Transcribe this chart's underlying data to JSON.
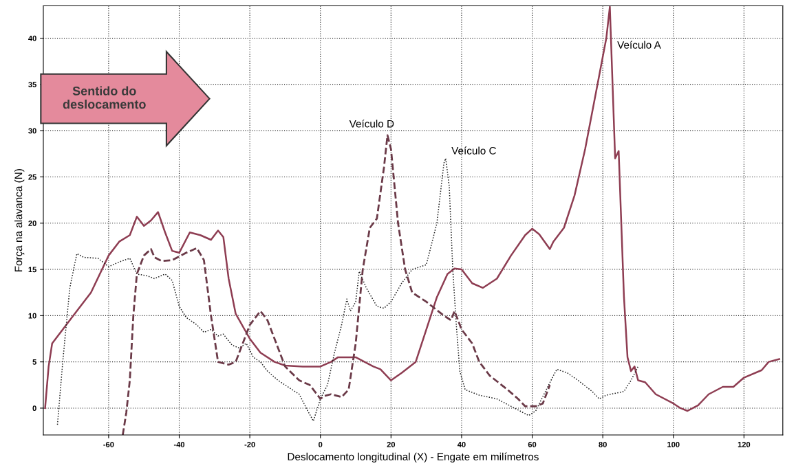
{
  "chart_data": {
    "type": "line",
    "xlabel": "Deslocamento longitudinal (X) - Engate em milímetros",
    "ylabel": "Força na alavanca (N)",
    "xlim": [
      -78.5,
      131
    ],
    "ylim": [
      -2.9,
      43.5
    ],
    "xticks": [
      -60,
      -40,
      -20,
      0,
      20,
      40,
      60,
      80,
      100,
      120
    ],
    "yticks": [
      0,
      5,
      10,
      15,
      20,
      25,
      30,
      35,
      40
    ],
    "grid": true,
    "legend": false,
    "series": [
      {
        "color": "#8e3d52",
        "line_style": "solid",
        "x": [
          -78,
          -77,
          -76,
          -73,
          -70,
          -65,
          -60,
          -57,
          -54,
          -52,
          -50,
          -48,
          -46,
          -44,
          -42,
          -40,
          -37,
          -34,
          -31,
          -29,
          -27.5,
          -26,
          -24,
          -20,
          -17,
          -13,
          -10,
          -5,
          0,
          3,
          5,
          10,
          15,
          17,
          20,
          23,
          27,
          30,
          33,
          36,
          38,
          40,
          43,
          46,
          50,
          54,
          58,
          60,
          62,
          65,
          66,
          69,
          72,
          75,
          79,
          81,
          82,
          83.5,
          84.5,
          86,
          87,
          88,
          89,
          90,
          92,
          95,
          100,
          102,
          104,
          107,
          110,
          114,
          117,
          120,
          125,
          127,
          130
        ],
        "values": [
          0,
          4.5,
          7,
          8.5,
          10,
          12.5,
          16.5,
          18,
          18.7,
          20.7,
          19.7,
          20.3,
          21.2,
          19,
          17,
          16.8,
          19,
          18.7,
          18.2,
          19.2,
          18.5,
          14,
          10.2,
          7.5,
          6,
          5,
          4.6,
          4.5,
          4.5,
          5,
          5.5,
          5.5,
          4.5,
          4.2,
          3,
          3.8,
          5,
          8.5,
          12,
          14.5,
          15.1,
          15,
          13.5,
          13,
          14,
          16.5,
          18.7,
          19.4,
          18.8,
          17.2,
          18,
          19.5,
          23,
          28,
          36,
          40,
          43.4,
          27,
          27.8,
          12,
          5.5,
          4,
          4.5,
          3,
          2.8,
          1.5,
          0.5,
          0,
          -0.3,
          0.3,
          1.5,
          2.3,
          2.3,
          3.3,
          4.1,
          5,
          5.3
        ]
      },
      {
        "color": "#1a1a1a",
        "line_style": "dotted",
        "x": [
          -74.5,
          -73,
          -71,
          -69,
          -67,
          -63,
          -60,
          -57,
          -54,
          -52,
          -49,
          -47,
          -44,
          -42,
          -40,
          -38,
          -35,
          -33,
          -31,
          -29,
          -27.5,
          -25,
          -23,
          -21,
          -19,
          -17,
          -15,
          -12,
          -10,
          -6,
          -4,
          -2,
          0,
          2,
          4,
          6,
          7.5,
          8.5,
          10,
          11,
          13,
          16,
          18,
          20,
          23,
          26,
          30,
          33,
          35,
          35.5,
          36.5,
          37.5,
          38.5,
          39.5,
          41,
          45,
          50,
          55,
          59,
          61,
          64,
          66,
          67,
          70,
          73,
          77,
          79,
          81,
          86,
          88,
          90
        ],
        "values": [
          -1.8,
          5,
          13,
          16.7,
          16.3,
          16.2,
          15.3,
          15.8,
          16.2,
          14.5,
          14.3,
          14,
          14.5,
          13.8,
          11,
          9.8,
          9,
          8.2,
          8.5,
          7.8,
          8,
          6.8,
          6.5,
          7,
          5.5,
          5,
          4,
          3,
          2.5,
          1.5,
          0,
          -1.4,
          1,
          2.5,
          6,
          9,
          11.8,
          10.5,
          11.5,
          14.8,
          13,
          11,
          10.8,
          11.5,
          13.5,
          15,
          15.5,
          20,
          26.5,
          27,
          24,
          15,
          9,
          4,
          2,
          1.4,
          1,
          0,
          -0.8,
          -0.3,
          2,
          3.5,
          4.2,
          3.8,
          3,
          1.8,
          1,
          1.4,
          1.8,
          3,
          4.5
        ]
      },
      {
        "color": "#6b3a48",
        "line_style": "dashed",
        "x": [
          -56,
          -55,
          -54,
          -53,
          -52,
          -50,
          -48,
          -47,
          -45,
          -42,
          -38,
          -35,
          -33,
          -31,
          -29,
          -26,
          -24,
          -22,
          -20,
          -17,
          -15,
          -12,
          -10,
          -6,
          -3,
          0,
          1,
          3,
          6,
          8,
          10,
          12,
          14,
          16,
          18,
          19,
          20,
          22,
          24,
          26,
          30,
          35,
          37,
          38,
          40,
          43,
          45,
          48,
          53,
          56,
          58,
          61,
          63,
          65
        ],
        "values": [
          -2.9,
          -0.5,
          3,
          10,
          14.5,
          16.5,
          17.2,
          16.3,
          15.9,
          16,
          16.8,
          17.3,
          16,
          10,
          5,
          4.7,
          5,
          7,
          9,
          10.5,
          9.5,
          6.5,
          4.5,
          3,
          2.5,
          1,
          1.3,
          1.5,
          1.2,
          2,
          7,
          15,
          19.5,
          20.5,
          26,
          29.5,
          28,
          20,
          15,
          12.5,
          11.5,
          10,
          9.5,
          10.5,
          8.5,
          7,
          5,
          3.5,
          2,
          1,
          0.2,
          0.2,
          0.5,
          2.5
        ]
      }
    ],
    "annotations": [
      {
        "text": "Veículo A",
        "x": 83,
        "y": 40.5
      },
      {
        "text": "Veículo D",
        "x": 19,
        "y": 29.5
      },
      {
        "text": "Veículo C",
        "x": 35.5,
        "y": 27
      },
      "Sentido do\ndeslocamento"
    ]
  }
}
